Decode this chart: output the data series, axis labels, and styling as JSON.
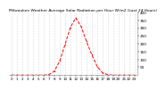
{
  "title": "Milwaukee Weather Average Solar Radiation per Hour W/m2 (Last 24 Hours)",
  "hours": [
    0,
    1,
    2,
    3,
    4,
    5,
    6,
    7,
    8,
    9,
    10,
    11,
    12,
    13,
    14,
    15,
    16,
    17,
    18,
    19,
    20,
    21,
    22,
    23
  ],
  "values": [
    0,
    0,
    0,
    0,
    0,
    0,
    0,
    3,
    25,
    90,
    195,
    305,
    365,
    310,
    215,
    130,
    55,
    15,
    2,
    0,
    0,
    0,
    0,
    0
  ],
  "line_color": "#ff0000",
  "bg_color": "#ffffff",
  "grid_color": "#bbbbbb",
  "ylim": [
    0,
    400
  ],
  "yticks": [
    50,
    100,
    150,
    200,
    250,
    300,
    350,
    400
  ],
  "xtick_labels": [
    "0",
    "1",
    "2",
    "3",
    "4",
    "5",
    "6",
    "7",
    "8",
    "9",
    "10",
    "11",
    "12",
    "13",
    "14",
    "15",
    "16",
    "17",
    "18",
    "19",
    "20",
    "21",
    "22",
    "23"
  ],
  "xlabel_fontsize": 3.0,
  "ylabel_fontsize": 3.0,
  "title_fontsize": 3.2,
  "linewidth": 0.7,
  "markersize": 1.2
}
